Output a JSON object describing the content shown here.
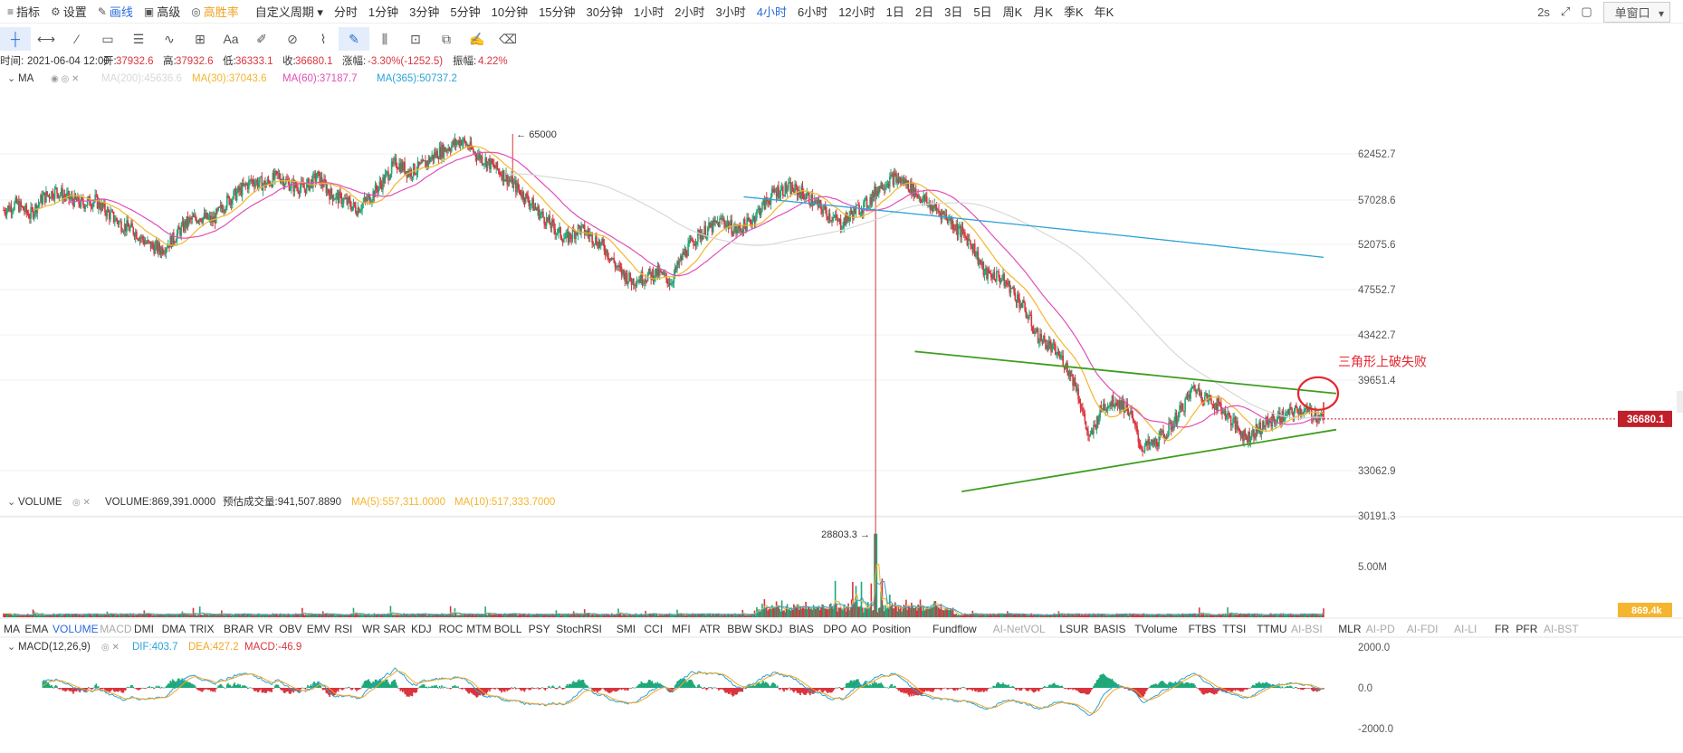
{
  "toolbar": {
    "left_items": [
      {
        "icon": "bars-icon",
        "label": "指标"
      },
      {
        "icon": "gear-icon",
        "label": "设置"
      },
      {
        "icon": "pencil-icon",
        "label": "画线"
      },
      {
        "icon": "box-icon",
        "label": "高级"
      },
      {
        "icon": "coin-icon",
        "label": "高胜率"
      }
    ],
    "custom_period": "自定义周期",
    "periods": [
      "分时",
      "1分钟",
      "3分钟",
      "5分钟",
      "10分钟",
      "15分钟",
      "30分钟",
      "1小时",
      "2小时",
      "3小时",
      "4小时",
      "6小时",
      "12小时",
      "1日",
      "2日",
      "3日",
      "5日",
      "周K",
      "月K",
      "季K",
      "年K"
    ],
    "active_period": "4小时",
    "refresh": "2s",
    "window_select": "单窗口"
  },
  "draw_tools": [
    "crosshair-icon",
    "h-line-icon",
    "trend-line-icon",
    "rect-icon",
    "parallel-icon",
    "wave-icon",
    "measure-icon",
    "text-icon",
    "brush-icon",
    "magnet-icon",
    "ruler-icon",
    "pattern-icon",
    "candles-icon",
    "lock-icon",
    "copy-icon",
    "edit-icon",
    "trash-icon"
  ],
  "info_bar": {
    "time_label": "时间:",
    "time": "2021-06-04 12:00",
    "open_label": "开:",
    "open": "37932.6",
    "high_label": "高:",
    "high": "37932.6",
    "low_label": "低:",
    "low": "36333.1",
    "close_label": "收:",
    "close": "36680.1",
    "change_label": "涨幅:",
    "change": "-3.30%(-1252.5)",
    "amp_label": "振幅:",
    "amp": "4.22%"
  },
  "ma_legend": {
    "name": "MA",
    "items": [
      {
        "label": "MA(200):45636.6",
        "color": "#d8d8d8"
      },
      {
        "label": "MA(30):37043.6",
        "color": "#f5b52e"
      },
      {
        "label": "MA(60):37187.7",
        "color": "#e04fb8"
      },
      {
        "label": "MA(365):50737.2",
        "color": "#2ba3d8"
      }
    ]
  },
  "price_axis": {
    "ticks": [
      "62452.7",
      "57028.6",
      "52075.6",
      "47552.7",
      "43422.7",
      "39651.4",
      "33062.9",
      "30191.3"
    ],
    "current": "36680.1",
    "current_color": "#c0202a"
  },
  "annotations": {
    "high": "65000",
    "low": "28803.3",
    "pattern_note": "三角形上破失败"
  },
  "volume_legend": {
    "name": "VOLUME",
    "value": "VOLUME:869,391.0000",
    "estimate": "预估成交量:941,507.8890",
    "ma5": "MA(5):557,311.0000",
    "ma10": "MA(10):517,333.7000"
  },
  "volume_axis": {
    "tick": "5.00M",
    "current": "869.4k"
  },
  "indicator_tabs": [
    {
      "label": "MA",
      "state": "normal"
    },
    {
      "label": "EMA",
      "state": "normal"
    },
    {
      "label": "VOLUME",
      "state": "active"
    },
    {
      "label": "MACD",
      "state": "dim"
    },
    {
      "label": "DMI",
      "state": "normal"
    },
    {
      "label": "DMA",
      "state": "normal"
    },
    {
      "label": "TRIX",
      "state": "normal"
    },
    {
      "label": "BRAR",
      "state": "normal"
    },
    {
      "label": "VR",
      "state": "normal"
    },
    {
      "label": "OBV",
      "state": "normal"
    },
    {
      "label": "EMV",
      "state": "normal"
    },
    {
      "label": "RSI",
      "state": "normal"
    },
    {
      "label": "WR",
      "state": "normal"
    },
    {
      "label": "SAR",
      "state": "normal"
    },
    {
      "label": "KDJ",
      "state": "normal"
    },
    {
      "label": "ROC",
      "state": "normal"
    },
    {
      "label": "MTM",
      "state": "normal"
    },
    {
      "label": "BOLL",
      "state": "normal"
    },
    {
      "label": "PSY",
      "state": "normal"
    },
    {
      "label": "StochRSI",
      "state": "normal"
    },
    {
      "label": "SMI",
      "state": "normal"
    },
    {
      "label": "CCI",
      "state": "normal"
    },
    {
      "label": "MFI",
      "state": "normal"
    },
    {
      "label": "ATR",
      "state": "normal"
    },
    {
      "label": "BBW",
      "state": "normal"
    },
    {
      "label": "SKDJ",
      "state": "normal"
    },
    {
      "label": "BIAS",
      "state": "normal"
    },
    {
      "label": "DPO",
      "state": "normal"
    },
    {
      "label": "AO",
      "state": "normal"
    },
    {
      "label": "Position",
      "state": "normal"
    },
    {
      "label": "Fundflow",
      "state": "normal"
    },
    {
      "label": "AI-NetVOL",
      "state": "dim"
    },
    {
      "label": "LSUR",
      "state": "normal"
    },
    {
      "label": "BASIS",
      "state": "normal"
    },
    {
      "label": "TVolume",
      "state": "normal"
    },
    {
      "label": "FTBS",
      "state": "normal"
    },
    {
      "label": "TTSI",
      "state": "normal"
    },
    {
      "label": "TTMU",
      "state": "normal"
    },
    {
      "label": "AI-BSI",
      "state": "dim"
    },
    {
      "label": "MLR",
      "state": "normal"
    },
    {
      "label": "AI-PD",
      "state": "dim"
    },
    {
      "label": "AI-FDI",
      "state": "dim"
    },
    {
      "label": "AI-LI",
      "state": "dim"
    },
    {
      "label": "FR",
      "state": "normal"
    },
    {
      "label": "PFR",
      "state": "normal"
    },
    {
      "label": "AI-BST",
      "state": "dim"
    }
  ],
  "macd_legend": {
    "name": "MACD(12,26,9)",
    "dif": "DIF:403.7",
    "dea": "DEA:427.2",
    "macd": "MACD:-46.9"
  },
  "macd_axis": {
    "ticks": [
      "2000.0",
      "0.0",
      "-2000.0"
    ]
  },
  "colors": {
    "up": "#1fa87a",
    "down": "#d9353f",
    "ma30": "#f5b52e",
    "ma60": "#e04fb8",
    "ma365": "#2ba3d8",
    "ma200": "#d8d8d8",
    "triangle": "#3f9d1f",
    "circle": "#e5262f",
    "dif": "#2ba3d8",
    "dea": "#f5a623"
  },
  "chart_data": {
    "type": "candlestick",
    "timeframe": "4小时",
    "price_range": [
      28000,
      66000
    ],
    "key_points": {
      "high": 65000,
      "low": 28803.3,
      "last_close": 36680.1
    },
    "last_candle": {
      "time": "2021-06-04 12:00",
      "open": 37932.6,
      "high": 37932.6,
      "low": 36333.1,
      "close": 36680.1
    },
    "ma": {
      "ma30": 37043.6,
      "ma60": 37187.7,
      "ma200": 45636.6,
      "ma365": 50737.2
    },
    "close_path": [
      55800,
      56500,
      55200,
      57200,
      58000,
      57100,
      56500,
      56900,
      55400,
      54200,
      53500,
      52100,
      51500,
      52700,
      54400,
      55100,
      54600,
      56700,
      57900,
      59200,
      58700,
      59800,
      58600,
      58300,
      59700,
      57600,
      56900,
      55900,
      57200,
      59100,
      61400,
      60200,
      60900,
      62400,
      63300,
      64200,
      62600,
      61400,
      60200,
      58700,
      57100,
      55400,
      53900,
      52600,
      53800,
      52900,
      51600,
      49500,
      48400,
      48800,
      49200,
      48300,
      51100,
      52900,
      53800,
      54700,
      53500,
      54400,
      56200,
      57900,
      58300,
      57800,
      56600,
      55400,
      54200,
      55600,
      56500,
      58600,
      59500,
      58900,
      57400,
      56100,
      55200,
      53600,
      52200,
      49100,
      48900,
      47700,
      45800,
      43400,
      42400,
      41300,
      39200,
      35100,
      37600,
      38100,
      37400,
      34600,
      34900,
      35800,
      37300,
      39100,
      38200,
      37600,
      36400,
      35300,
      36000,
      36600,
      36900,
      37400,
      37100,
      36680
    ],
    "triangle": {
      "upper_start": 42000,
      "upper_end": 38600,
      "lower_start": 31700,
      "lower_end": 35900
    },
    "volume": {
      "last": 869391.0,
      "estimate": 941507.889,
      "ma5": 557311.0,
      "ma10": 517333.7
    },
    "macd": {
      "dif": 403.7,
      "dea": 427.2,
      "macd": -46.9,
      "range": [
        -2600,
        2600
      ]
    }
  }
}
